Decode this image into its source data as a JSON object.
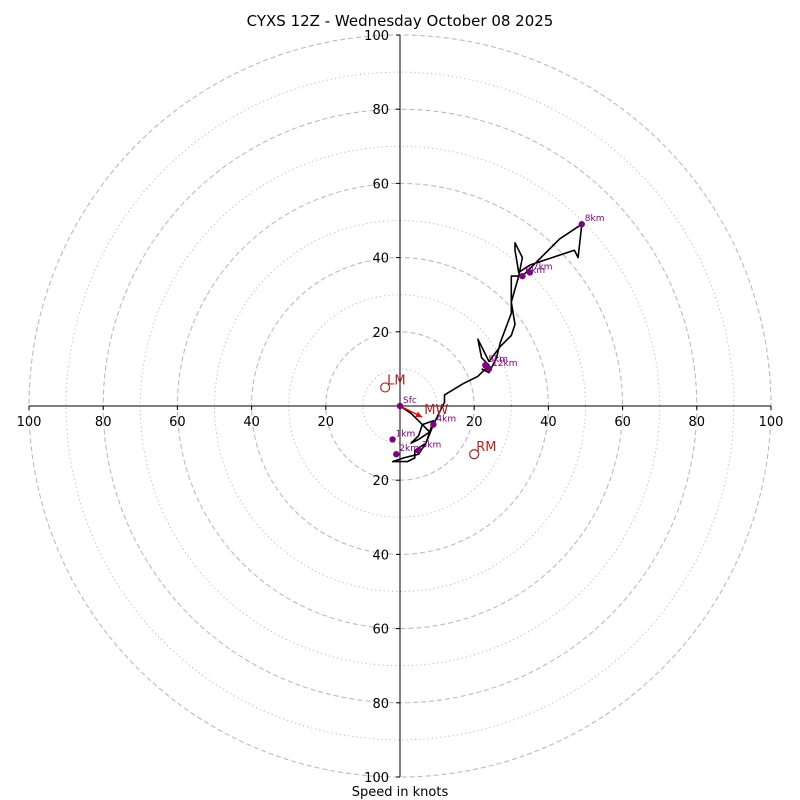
{
  "chart_data": {
    "type": "hodograph",
    "title": "CYXS 12Z - Wednesday October 08 2025",
    "xlabel": "Speed in knots",
    "units": "knots",
    "max_speed": 100,
    "ring_major": [
      20,
      40,
      60,
      80,
      100
    ],
    "ring_minor": [
      10,
      30,
      50,
      70,
      90
    ],
    "tick_labels": {
      "left": [
        "100",
        "80",
        "60",
        "40",
        "20"
      ],
      "right": [
        "20",
        "40",
        "60",
        "80",
        "100"
      ],
      "top": [
        "100",
        "80",
        "60",
        "40",
        "20"
      ],
      "bottom": [
        "20",
        "40",
        "60",
        "80",
        "100"
      ]
    },
    "tick_values": [
      100,
      80,
      60,
      40,
      20
    ],
    "trace_uv": [
      [
        0,
        0
      ],
      [
        3,
        -2
      ],
      [
        5,
        -4
      ],
      [
        6,
        -5
      ],
      [
        5,
        -8
      ],
      [
        3,
        -10
      ],
      [
        5,
        -9
      ],
      [
        8,
        -7
      ],
      [
        6,
        -5
      ],
      [
        9,
        -4
      ],
      [
        7,
        -10
      ],
      [
        4,
        -12
      ],
      [
        4,
        -14
      ],
      [
        2,
        -15
      ],
      [
        -2,
        -15
      ],
      [
        1,
        -14
      ],
      [
        5,
        -13
      ],
      [
        7,
        -10
      ],
      [
        9,
        -5
      ],
      [
        11,
        -1
      ],
      [
        12,
        1
      ],
      [
        12,
        3
      ],
      [
        17,
        6
      ],
      [
        21,
        8
      ],
      [
        23,
        10
      ],
      [
        24,
        11
      ],
      [
        22,
        13
      ],
      [
        21,
        18
      ],
      [
        24,
        12
      ],
      [
        27,
        16
      ],
      [
        30,
        19
      ],
      [
        31,
        22
      ],
      [
        30,
        28
      ],
      [
        32,
        35
      ],
      [
        33,
        40
      ],
      [
        32,
        42
      ],
      [
        31,
        44
      ],
      [
        31,
        42
      ],
      [
        32,
        36
      ],
      [
        35,
        38
      ],
      [
        41,
        40
      ],
      [
        47,
        42
      ],
      [
        48,
        40
      ],
      [
        49,
        49
      ],
      [
        43,
        45
      ],
      [
        33,
        35
      ],
      [
        30,
        35
      ],
      [
        30,
        25
      ],
      [
        27,
        17
      ],
      [
        26,
        13
      ],
      [
        24,
        9
      ],
      [
        22,
        10
      ]
    ],
    "height_markers": [
      {
        "label": "Sfc",
        "u": 0,
        "v": 0
      },
      {
        "label": "1km",
        "u": -2,
        "v": -9
      },
      {
        "label": "2km",
        "u": -1,
        "v": -13
      },
      {
        "label": "3km",
        "u": 5,
        "v": -12
      },
      {
        "label": "4km",
        "u": 9,
        "v": -5
      },
      {
        "label": "5km",
        "u": 23,
        "v": 11
      },
      {
        "label": "6km",
        "u": 33,
        "v": 35
      },
      {
        "label": "7km",
        "u": 35,
        "v": 36
      },
      {
        "label": "8km",
        "u": 49,
        "v": 49
      },
      {
        "label": "12km",
        "u": 24,
        "v": 10
      }
    ],
    "storm_motion": [
      {
        "label": "LM",
        "u": -4,
        "v": 5
      },
      {
        "label": "MW",
        "u": 6,
        "v": -3
      },
      {
        "label": "RM",
        "u": 20,
        "v": -13
      }
    ],
    "colors": {
      "trace": "#000000",
      "height_marker": "#800080",
      "storm_motion": "#b22222",
      "mean_wind_arrow": "#ff0000",
      "grid": "#bbbbbb",
      "axis": "#000000"
    }
  }
}
